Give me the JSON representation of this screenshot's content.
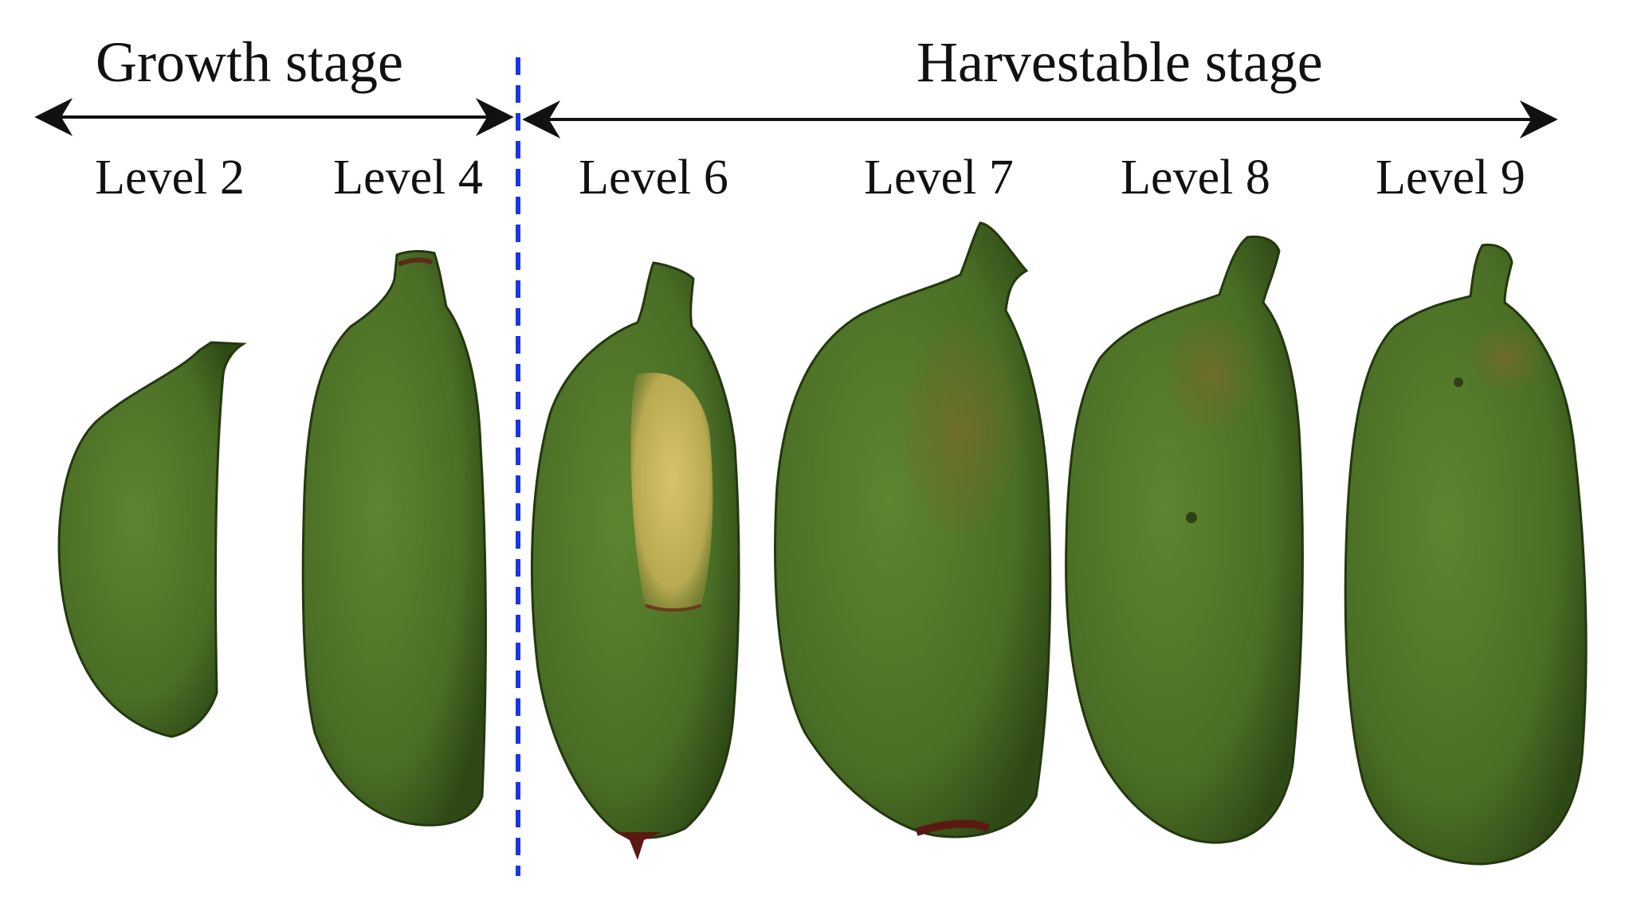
{
  "stages": [
    {
      "label": "Growth stage"
    },
    {
      "label": "Harvestable stage"
    }
  ],
  "levels": [
    {
      "label": "Level 2",
      "stage": "Growth stage"
    },
    {
      "label": "Level 4",
      "stage": "Growth stage"
    },
    {
      "label": "Level 6",
      "stage": "Harvestable stage"
    },
    {
      "label": "Level 7",
      "stage": "Harvestable stage"
    },
    {
      "label": "Level 8",
      "stage": "Harvestable stage"
    },
    {
      "label": "Level 9",
      "stage": "Harvestable stage"
    }
  ],
  "colors": {
    "fruit_green": "#4f7428",
    "fruit_dark": "#2e4a14",
    "ripening_patch": "#c9b65a",
    "divider_blue": "#1a35e6",
    "arrow": "#111111"
  }
}
